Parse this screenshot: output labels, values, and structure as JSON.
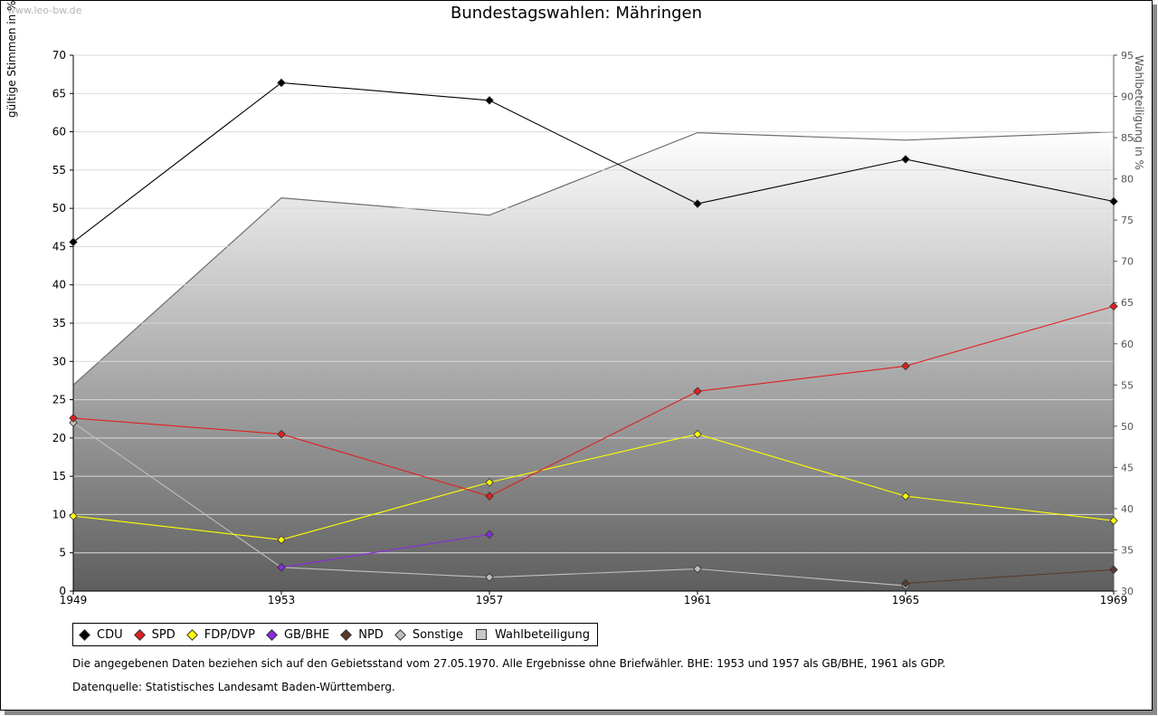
{
  "watermark": "www.leo-bw.de",
  "title": "Bundestagswahlen: Mähringen",
  "colors": {
    "CDU": "#000000",
    "SPD": "#e02020",
    "FDP/DVP": "#ffff00",
    "GB/BHE": "#8a2be2",
    "NPD": "#5a3a2a",
    "Sonstige": "#c0c0c0",
    "Wahlbeteiligung": "#c8c8c8"
  },
  "chart_data": {
    "type": "line",
    "title": "Bundestagswahlen: Mähringen",
    "xlabel": "",
    "ylabel": "gültige Stimmen in %",
    "ylabel_right": "Wahlbeteiligung in %",
    "x": [
      1949,
      1953,
      1957,
      1961,
      1965,
      1969
    ],
    "ylim": [
      0,
      70
    ],
    "yticks": [
      0,
      5,
      10,
      15,
      20,
      25,
      30,
      35,
      40,
      45,
      50,
      55,
      60,
      65,
      70
    ],
    "ylim_right": [
      30,
      95
    ],
    "yticks_right": [
      30,
      35,
      40,
      45,
      50,
      55,
      60,
      65,
      70,
      75,
      80,
      85,
      90,
      95
    ],
    "grid": true,
    "legend_position": "bottom",
    "series": [
      {
        "name": "CDU",
        "values": [
          45.6,
          66.4,
          64.1,
          50.6,
          56.4,
          50.9
        ]
      },
      {
        "name": "SPD",
        "values": [
          22.6,
          20.5,
          12.4,
          26.1,
          29.4,
          37.2
        ]
      },
      {
        "name": "FDP/DVP",
        "values": [
          9.8,
          6.7,
          14.2,
          20.5,
          12.4,
          9.2
        ]
      },
      {
        "name": "GB/BHE",
        "values": [
          null,
          3.1,
          7.4,
          null,
          null,
          null
        ]
      },
      {
        "name": "NPD",
        "values": [
          null,
          null,
          null,
          null,
          1.0,
          2.8
        ]
      },
      {
        "name": "Sonstige",
        "values": [
          22.0,
          3.1,
          1.8,
          2.9,
          0.7,
          null
        ]
      }
    ],
    "area_series": {
      "name": "Wahlbeteiligung",
      "axis": "right",
      "values": [
        55.0,
        77.7,
        75.6,
        85.6,
        84.7,
        85.7
      ]
    }
  },
  "legend": [
    "CDU",
    "SPD",
    "FDP/DVP",
    "GB/BHE",
    "NPD",
    "Sonstige",
    "Wahlbeteiligung"
  ],
  "notes": {
    "line1": "Die angegebenen Daten beziehen sich auf den Gebietsstand vom 27.05.1970. Alle Ergebnisse ohne Briefwähler. BHE: 1953 und 1957 als GB/BHE, 1961 als GDP.",
    "line2": "Datenquelle: Statistisches Landesamt Baden-Württemberg."
  }
}
